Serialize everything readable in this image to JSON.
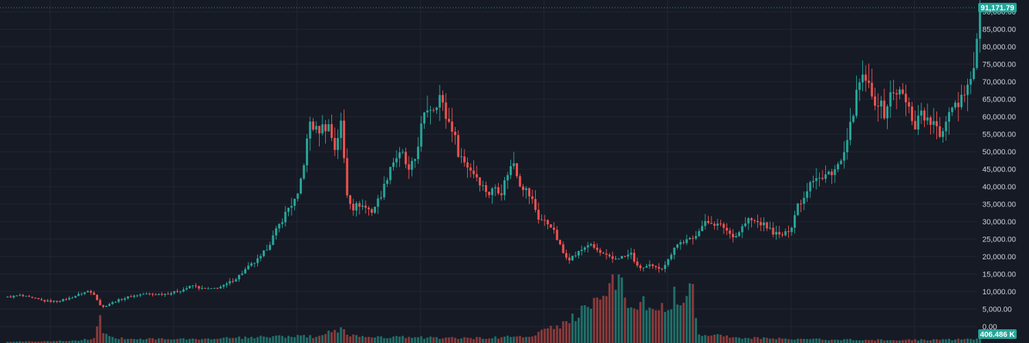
{
  "chart_data": {
    "type": "candlestick",
    "axis": {
      "y_ticks": [
        "0.00",
        "5,000.00",
        "10,000.00",
        "15,000.00",
        "20,000.00",
        "25,000.00",
        "30,000.00",
        "35,000.00",
        "40,000.00",
        "45,000.00",
        "50,000.00",
        "55,000.00",
        "60,000.00",
        "65,000.00",
        "70,000.00",
        "75,000.00",
        "80,000.00",
        "85,000.00",
        "90,000.00"
      ],
      "ylim": [
        0,
        92000
      ],
      "grid": true
    },
    "last_price_label": "91,171.79",
    "last_price": 91171.79,
    "volume_label": "406.486 K",
    "colors": {
      "up": "#26a69a",
      "down": "#ef5350",
      "volume_up": "#1f6f68",
      "volume_down": "#8a3a3a",
      "badge": "#26a69a",
      "grid": "#232734",
      "background": "#161a25",
      "text": "#d1d4dc"
    },
    "ohlc_waypoints": [
      [
        0,
        8400
      ],
      [
        4,
        8900
      ],
      [
        8,
        8100
      ],
      [
        12,
        7300
      ],
      [
        16,
        7200
      ],
      [
        20,
        8100
      ],
      [
        24,
        9500
      ],
      [
        26,
        10100
      ],
      [
        28,
        9300
      ],
      [
        30,
        6200
      ],
      [
        31,
        5600
      ],
      [
        33,
        6500
      ],
      [
        36,
        7600
      ],
      [
        40,
        8700
      ],
      [
        44,
        9300
      ],
      [
        48,
        9200
      ],
      [
        52,
        9400
      ],
      [
        56,
        10300
      ],
      [
        60,
        11700
      ],
      [
        63,
        10800
      ],
      [
        66,
        10700
      ],
      [
        70,
        11600
      ],
      [
        74,
        13800
      ],
      [
        78,
        17000
      ],
      [
        82,
        19700
      ],
      [
        85,
        24000
      ],
      [
        88,
        29000
      ],
      [
        91,
        34000
      ],
      [
        94,
        37000
      ],
      [
        96,
        47000
      ],
      [
        98,
        58500
      ],
      [
        100,
        56000
      ],
      [
        102,
        57000
      ],
      [
        104,
        57500
      ],
      [
        106,
        51000
      ],
      [
        108,
        58000
      ],
      [
        110,
        38000
      ],
      [
        112,
        34000
      ],
      [
        114,
        35000
      ],
      [
        116,
        34000
      ],
      [
        118,
        33000
      ],
      [
        120,
        36000
      ],
      [
        122,
        40000
      ],
      [
        124,
        46000
      ],
      [
        126,
        48500
      ],
      [
        128,
        49000
      ],
      [
        130,
        44000
      ],
      [
        132,
        48000
      ],
      [
        134,
        57000
      ],
      [
        136,
        62500
      ],
      [
        138,
        63000
      ],
      [
        140,
        66000
      ],
      [
        142,
        60000
      ],
      [
        144,
        57000
      ],
      [
        146,
        50000
      ],
      [
        148,
        47000
      ],
      [
        150,
        45000
      ],
      [
        152,
        43000
      ],
      [
        154,
        40000
      ],
      [
        156,
        38000
      ],
      [
        158,
        40000
      ],
      [
        160,
        38500
      ],
      [
        162,
        44000
      ],
      [
        164,
        47000
      ],
      [
        166,
        41000
      ],
      [
        168,
        39000
      ],
      [
        170,
        36000
      ],
      [
        172,
        31000
      ],
      [
        174,
        30000
      ],
      [
        176,
        29000
      ],
      [
        178,
        25000
      ],
      [
        180,
        21000
      ],
      [
        182,
        19500
      ],
      [
        184,
        20500
      ],
      [
        186,
        22000
      ],
      [
        188,
        23500
      ],
      [
        190,
        22500
      ],
      [
        192,
        21000
      ],
      [
        194,
        20000
      ],
      [
        196,
        19300
      ],
      [
        198,
        19800
      ],
      [
        200,
        20000
      ],
      [
        202,
        20800
      ],
      [
        204,
        17000
      ],
      [
        206,
        16800
      ],
      [
        208,
        17300
      ],
      [
        210,
        16700
      ],
      [
        212,
        16900
      ],
      [
        214,
        19000
      ],
      [
        216,
        23000
      ],
      [
        218,
        24000
      ],
      [
        220,
        24500
      ],
      [
        222,
        25000
      ],
      [
        224,
        28000
      ],
      [
        226,
        29500
      ],
      [
        228,
        30000
      ],
      [
        230,
        29000
      ],
      [
        232,
        28500
      ],
      [
        234,
        26500
      ],
      [
        236,
        26000
      ],
      [
        238,
        28500
      ],
      [
        240,
        30500
      ],
      [
        242,
        30000
      ],
      [
        244,
        29500
      ],
      [
        246,
        28500
      ],
      [
        248,
        27000
      ],
      [
        250,
        26000
      ],
      [
        252,
        26500
      ],
      [
        254,
        29000
      ],
      [
        256,
        35000
      ],
      [
        258,
        37000
      ],
      [
        260,
        42000
      ],
      [
        262,
        43000
      ],
      [
        264,
        42000
      ],
      [
        266,
        44000
      ],
      [
        268,
        45000
      ],
      [
        270,
        47000
      ],
      [
        272,
        52000
      ],
      [
        274,
        62000
      ],
      [
        276,
        69500
      ],
      [
        278,
        71000
      ],
      [
        280,
        65000
      ],
      [
        282,
        64500
      ],
      [
        284,
        61000
      ],
      [
        286,
        66000
      ],
      [
        288,
        67500
      ],
      [
        290,
        66000
      ],
      [
        292,
        62000
      ],
      [
        294,
        57500
      ],
      [
        296,
        62000
      ],
      [
        298,
        58500
      ],
      [
        300,
        58000
      ],
      [
        302,
        54000
      ],
      [
        304,
        59500
      ],
      [
        306,
        64000
      ],
      [
        308,
        64000
      ],
      [
        310,
        68000
      ],
      [
        312,
        70000
      ],
      [
        314,
        80000
      ],
      [
        315,
        91171.79
      ]
    ],
    "volume_waypoints": [
      [
        0,
        0.4
      ],
      [
        20,
        0.7
      ],
      [
        28,
        1.3
      ],
      [
        30,
        8.5
      ],
      [
        31,
        3
      ],
      [
        36,
        1.5
      ],
      [
        60,
        1.2
      ],
      [
        80,
        1.8
      ],
      [
        90,
        2.2
      ],
      [
        100,
        2.0
      ],
      [
        108,
        4.5
      ],
      [
        112,
        2.2
      ],
      [
        130,
        1.8
      ],
      [
        150,
        1.5
      ],
      [
        170,
        2.2
      ],
      [
        178,
        5.5
      ],
      [
        186,
        10
      ],
      [
        194,
        18
      ],
      [
        198,
        21
      ],
      [
        200,
        15
      ],
      [
        204,
        13
      ],
      [
        212,
        11
      ],
      [
        216,
        15
      ],
      [
        218,
        14
      ],
      [
        222,
        18
      ],
      [
        224,
        3
      ],
      [
        240,
        1.6
      ],
      [
        260,
        1.2
      ],
      [
        280,
        1.0
      ],
      [
        300,
        1.0
      ],
      [
        314,
        1.2
      ],
      [
        315,
        2.0
      ]
    ],
    "volume_scale_max": 22
  }
}
